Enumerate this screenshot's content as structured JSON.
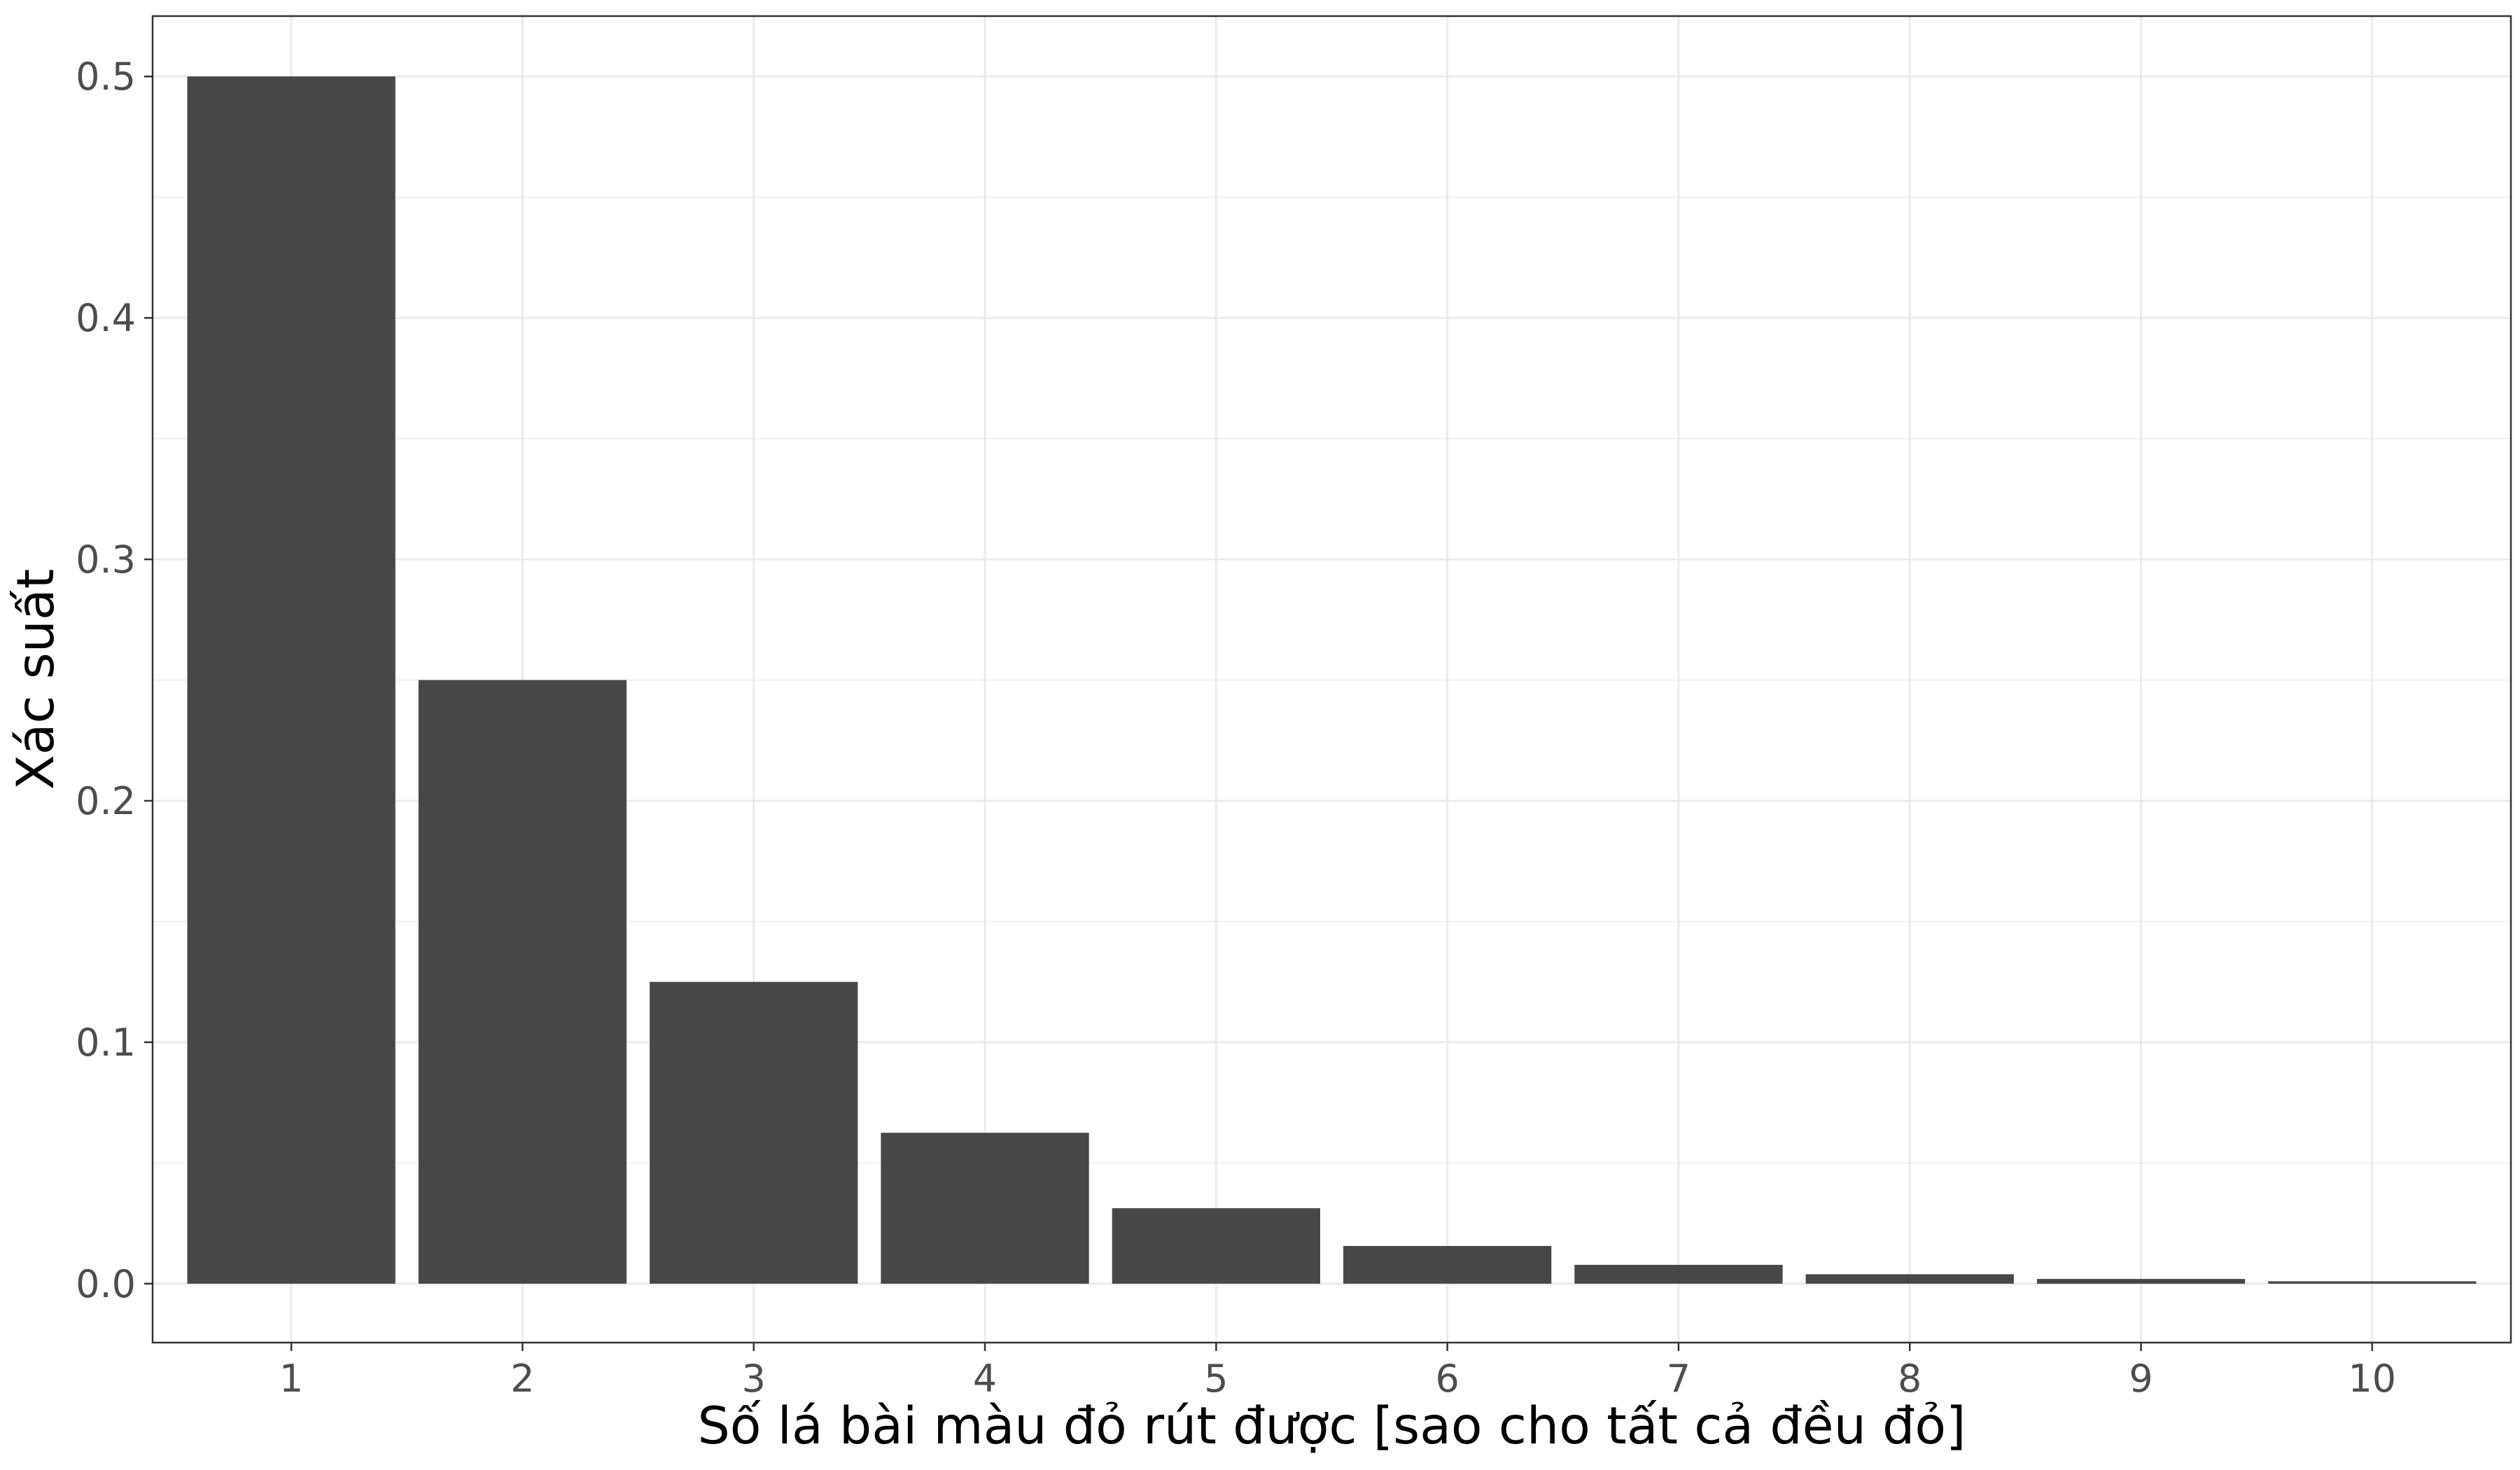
{
  "chart_data": {
    "type": "bar",
    "categories": [
      "1",
      "2",
      "3",
      "4",
      "5",
      "6",
      "7",
      "8",
      "9",
      "10"
    ],
    "values": [
      0.5,
      0.25,
      0.125,
      0.0625,
      0.03125,
      0.015625,
      0.0078125,
      0.00390625,
      0.001953125,
      0.0009765625
    ],
    "xlabel": "Số lá bài màu đỏ rút được [sao cho tất cả đều đỏ]",
    "ylabel": "Xác suất",
    "ylim": [
      -0.0244,
      0.525
    ],
    "yticks": [
      "0.0",
      "0.1",
      "0.2",
      "0.3",
      "0.4",
      "0.5"
    ],
    "grid": true,
    "bar_color": "#474747",
    "grid_color": "#ebebeb",
    "theme": "bw"
  }
}
